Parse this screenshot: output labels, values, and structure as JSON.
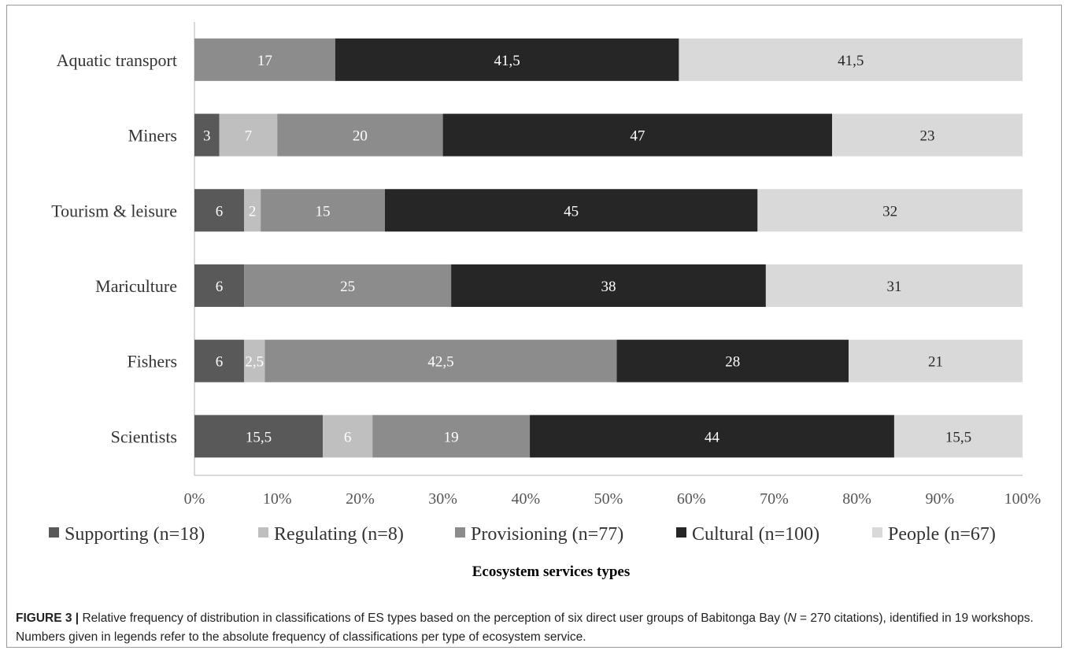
{
  "chart_data": {
    "type": "bar",
    "orientation": "horizontal",
    "stacked": true,
    "normalized": "percent",
    "categories": [
      "Aquatic transport",
      "Miners",
      "Tourism & leisure",
      "Mariculture",
      "Fishers",
      "Scientists"
    ],
    "series": [
      {
        "name": "Supporting (n=18)",
        "color": "#595959",
        "label_color": "#ffffff",
        "values": [
          0,
          3,
          6,
          6,
          6,
          15.5
        ],
        "labels": [
          "",
          "3",
          "6",
          "6",
          "6",
          "15,5"
        ]
      },
      {
        "name": "Regulating (n=8)",
        "color": "#bfbfbf",
        "label_color": "#ffffff",
        "values": [
          0,
          7,
          2,
          0,
          2.5,
          6
        ],
        "labels": [
          "",
          "7",
          "2",
          "",
          "2,5",
          "6"
        ]
      },
      {
        "name": "Provisioning (n=77)",
        "color": "#8c8c8c",
        "label_color": "#ffffff",
        "values": [
          17,
          20,
          15,
          25,
          42.5,
          19
        ],
        "labels": [
          "17",
          "20",
          "15",
          "25",
          "42,5",
          "19"
        ]
      },
      {
        "name": "Cultural (n=100)",
        "color": "#262626",
        "label_color": "#ffffff",
        "values": [
          41.5,
          47,
          45,
          38,
          28,
          44
        ],
        "labels": [
          "41,5",
          "47",
          "45",
          "38",
          "28",
          "44"
        ]
      },
      {
        "name": "People (n=67)",
        "color": "#d9d9d9",
        "label_color": "#262626",
        "values": [
          41.5,
          23,
          32,
          31,
          21,
          15.5
        ],
        "labels": [
          "41,5",
          "23",
          "32",
          "31",
          "21",
          "15,5"
        ]
      }
    ],
    "xticks": [
      "0%",
      "10%",
      "20%",
      "30%",
      "40%",
      "50%",
      "60%",
      "70%",
      "80%",
      "90%",
      "100%"
    ],
    "xlim": [
      0,
      100
    ],
    "xlabel": "Ecosystem services types",
    "ylabel": "",
    "legend_position": "bottom",
    "grid": false
  },
  "caption": {
    "label": "FIGURE 3 |",
    "text_1": " Relative frequency of distribution in classifications of ES types based on the perception of six direct user groups of Babitonga Bay (",
    "n_symbol": "N",
    "text_2": " = 270 citations), identified in 19 workshops. Numbers given in legends refer to the absolute frequency of classifications per type of ecosystem service."
  }
}
